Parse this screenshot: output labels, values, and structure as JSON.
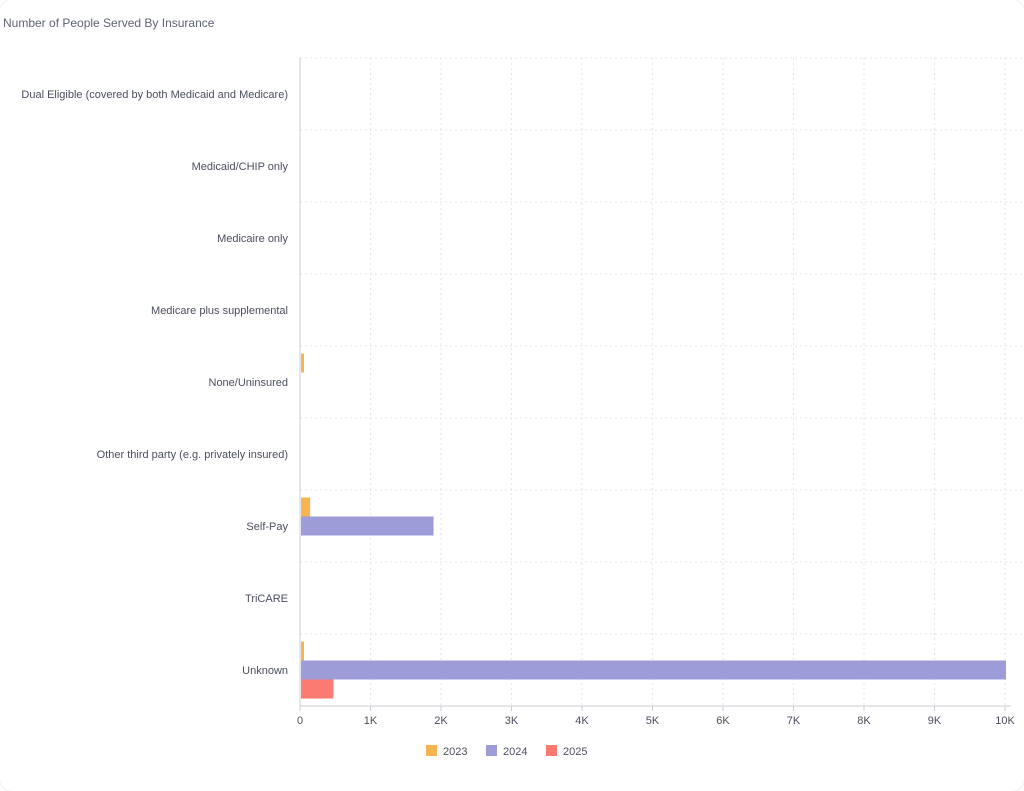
{
  "card": {
    "title": "Number of People Served By Insurance"
  },
  "chart_data": {
    "type": "bar",
    "orientation": "horizontal",
    "title": "Number of People Served By Insurance",
    "categories": [
      "Dual Eligible (covered by both Medicaid and Medicare)",
      "Medicaid/CHIP only",
      "Medicaire only",
      "Medicare plus supplemental",
      "None/Uninsured",
      "Other third party (e.g. privately insured)",
      "Self-Pay",
      "TriCARE",
      "Unknown"
    ],
    "series": [
      {
        "name": "2023",
        "color": "#f6b452",
        "values": [
          0,
          0,
          0,
          0,
          30,
          0,
          130,
          0,
          30
        ]
      },
      {
        "name": "2024",
        "color": "#9d9cd9",
        "values": [
          0,
          0,
          0,
          0,
          0,
          0,
          1880,
          0,
          10000
        ]
      },
      {
        "name": "2025",
        "color": "#fb7a72",
        "values": [
          0,
          0,
          0,
          0,
          0,
          0,
          0,
          0,
          460
        ]
      }
    ],
    "xlim": [
      0,
      10000
    ],
    "x_ticks": [
      0,
      1000,
      2000,
      3000,
      4000,
      5000,
      6000,
      7000,
      8000,
      9000,
      10000
    ],
    "x_tick_labels": [
      "0",
      "1K",
      "2K",
      "3K",
      "4K",
      "5K",
      "6K",
      "7K",
      "8K",
      "9K",
      "10K"
    ],
    "grid": true,
    "legend": "bottom-center"
  }
}
